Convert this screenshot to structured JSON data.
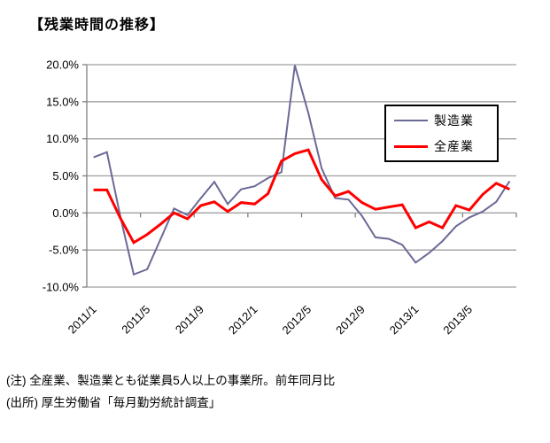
{
  "title": "【残業時間の推移】",
  "notes": [
    "(注) 全産業、製造業とも従業員5人以上の事業所。前年同月比",
    "(出所) 厚生労働省「毎月勤労統計調査」"
  ],
  "chart_data": {
    "type": "line",
    "x": [
      "2011/1",
      "2011/2",
      "2011/3",
      "2011/4",
      "2011/5",
      "2011/6",
      "2011/7",
      "2011/8",
      "2011/9",
      "2011/10",
      "2011/11",
      "2011/12",
      "2012/1",
      "2012/2",
      "2012/3",
      "2012/4",
      "2012/5",
      "2012/6",
      "2012/7",
      "2012/8",
      "2012/9",
      "2012/10",
      "2012/11",
      "2012/12",
      "2013/1",
      "2013/2",
      "2013/3",
      "2013/4",
      "2013/5",
      "2013/6",
      "2013/7",
      "2013/8"
    ],
    "x_tick_labels": [
      "2011/1",
      "2011/5",
      "2011/9",
      "2012/1",
      "2012/5",
      "2012/9",
      "2013/1",
      "2013/5"
    ],
    "series": [
      {
        "name": "製造業",
        "color": "#6a6a96",
        "width": 2,
        "values": [
          7.5,
          8.2,
          -0.5,
          -8.3,
          -7.6,
          -3.5,
          0.6,
          -0.3,
          2.0,
          4.2,
          1.2,
          3.2,
          3.6,
          4.7,
          5.5,
          19.9,
          13.5,
          6.0,
          2.0,
          1.8,
          -0.4,
          -3.3,
          -3.5,
          -4.3,
          -6.7,
          -5.4,
          -3.8,
          -1.8,
          -0.6,
          0.2,
          1.5,
          4.3
        ]
      },
      {
        "name": "全産業",
        "color": "#ff0000",
        "width": 3,
        "values": [
          3.1,
          3.1,
          -0.7,
          -4.0,
          -2.9,
          -1.5,
          0.0,
          -0.8,
          1.0,
          1.5,
          0.2,
          1.4,
          1.2,
          2.6,
          7.0,
          8.0,
          8.5,
          4.5,
          2.3,
          2.9,
          1.4,
          0.5,
          0.8,
          1.1,
          -2.0,
          -1.2,
          -2.0,
          1.0,
          0.4,
          2.5,
          4.0,
          3.2
        ]
      }
    ],
    "ylim": [
      -10,
      20
    ],
    "y_ticks": [
      20,
      15,
      10,
      5,
      0,
      -5,
      -10
    ],
    "y_tick_labels": [
      "20.0%",
      "15.0%",
      "10.0%",
      "5.0%",
      "0.0%",
      "-5.0%",
      "-10.0%"
    ],
    "grid": "horizontal",
    "legend_position": "upper-right-inside",
    "gridline_color": "#a0a0a0",
    "axis_color": "#808080"
  }
}
